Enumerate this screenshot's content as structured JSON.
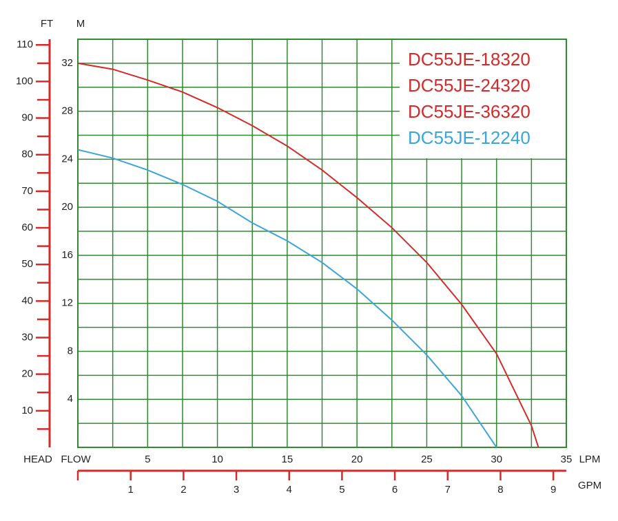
{
  "chart_data": {
    "type": "line",
    "head_label": "HEAD",
    "flow_label": "FLOW",
    "ft_label": "FT",
    "m_label": "M",
    "lpm_label": "LPM",
    "gpm_label": "GPM",
    "xlim": [
      0,
      35
    ],
    "xticks": [
      5,
      10,
      15,
      20,
      25,
      30,
      35
    ],
    "xgrid": [
      2.5,
      5,
      7.5,
      10,
      12.5,
      15,
      17.5,
      20,
      22.5,
      25,
      27.5,
      30,
      32.5
    ],
    "ylim": [
      0,
      34
    ],
    "yticks": [
      4,
      8,
      12,
      16,
      20,
      24,
      28,
      32
    ],
    "ygrid": [
      2,
      4,
      6,
      8,
      10,
      12,
      14,
      16,
      18,
      20,
      22,
      24,
      26,
      28,
      30,
      32
    ],
    "ftlim": [
      0,
      111.55
    ],
    "ftticks": [
      10,
      20,
      30,
      40,
      50,
      60,
      70,
      80,
      90,
      100,
      110
    ],
    "ftminorticks": [
      5,
      15,
      25,
      35,
      45,
      55,
      65,
      75,
      85,
      95,
      105
    ],
    "gpmlim": [
      0,
      9.246
    ],
    "gpmticks": [
      0,
      1,
      2,
      3,
      4,
      5,
      6,
      7,
      8,
      9
    ],
    "legend": [
      {
        "label": "DC55JE-18320",
        "color": "#d42a2a"
      },
      {
        "label": "DC55JE-24320",
        "color": "#d42a2a"
      },
      {
        "label": "DC55JE-36320",
        "color": "#d42a2a"
      },
      {
        "label": "DC55JE-12240",
        "color": "#3aa5d8"
      }
    ],
    "series": [
      {
        "color": "#d42a2a",
        "x": [
          0,
          2.5,
          5,
          7.5,
          10,
          12.5,
          15,
          17.5,
          20,
          22.5,
          25,
          27.5,
          30,
          32.5,
          33
        ],
        "values": [
          32.0,
          31.5,
          30.6,
          29.6,
          28.3,
          26.8,
          25.1,
          23.1,
          20.8,
          18.3,
          15.4,
          11.9,
          7.8,
          1.8,
          0
        ]
      },
      {
        "color": "#3aa5d8",
        "x": [
          0,
          2.5,
          5,
          7.5,
          10,
          12.5,
          15,
          17.5,
          20,
          22.5,
          25,
          27.5,
          30
        ],
        "values": [
          24.8,
          24.1,
          23.1,
          21.9,
          20.5,
          18.7,
          17.2,
          15.4,
          13.2,
          10.6,
          7.7,
          4.3,
          0
        ]
      }
    ]
  }
}
